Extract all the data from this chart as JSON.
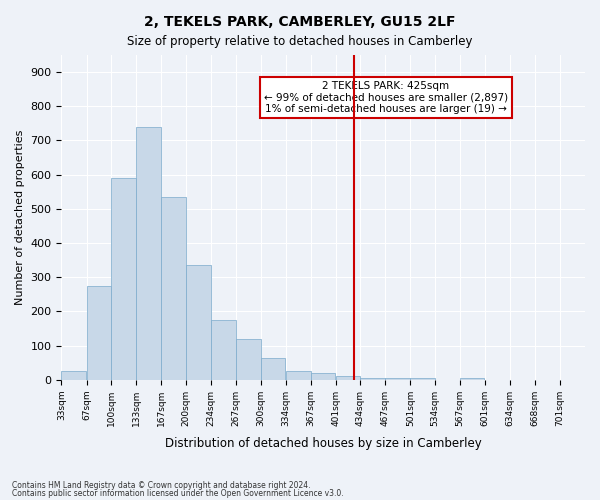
{
  "title1": "2, TEKELS PARK, CAMBERLEY, GU15 2LF",
  "title2": "Size of property relative to detached houses in Camberley",
  "xlabel": "Distribution of detached houses by size in Camberley",
  "ylabel": "Number of detached properties",
  "footnote1": "Contains HM Land Registry data © Crown copyright and database right 2024.",
  "footnote2": "Contains public sector information licensed under the Open Government Licence v3.0.",
  "annotation_line1": "2 TEKELS PARK: 425sqm",
  "annotation_line2": "← 99% of detached houses are smaller (2,897)",
  "annotation_line3": "1% of semi-detached houses are larger (19) →",
  "bar_color": "#c8d8e8",
  "bar_edge_color": "#7aaacc",
  "property_line_x": 425,
  "categories": [
    "33sqm",
    "67sqm",
    "100sqm",
    "133sqm",
    "167sqm",
    "200sqm",
    "234sqm",
    "267sqm",
    "300sqm",
    "334sqm",
    "367sqm",
    "401sqm",
    "434sqm",
    "467sqm",
    "501sqm",
    "534sqm",
    "567sqm",
    "601sqm",
    "634sqm",
    "668sqm",
    "701sqm"
  ],
  "bin_edges": [
    33,
    67,
    100,
    133,
    167,
    200,
    234,
    267,
    300,
    334,
    367,
    401,
    434,
    467,
    501,
    534,
    567,
    601,
    634,
    668,
    701
  ],
  "values": [
    25,
    275,
    590,
    740,
    535,
    335,
    175,
    120,
    65,
    25,
    20,
    10,
    5,
    5,
    5,
    0,
    5,
    0,
    0,
    0,
    0
  ],
  "ylim": [
    0,
    950
  ],
  "yticks": [
    0,
    100,
    200,
    300,
    400,
    500,
    600,
    700,
    800,
    900
  ],
  "background_color": "#eef2f8",
  "grid_color": "#ffffff",
  "annotation_box_color": "#ffffff",
  "annotation_box_edge_color": "#cc0000",
  "property_line_color": "#cc0000"
}
